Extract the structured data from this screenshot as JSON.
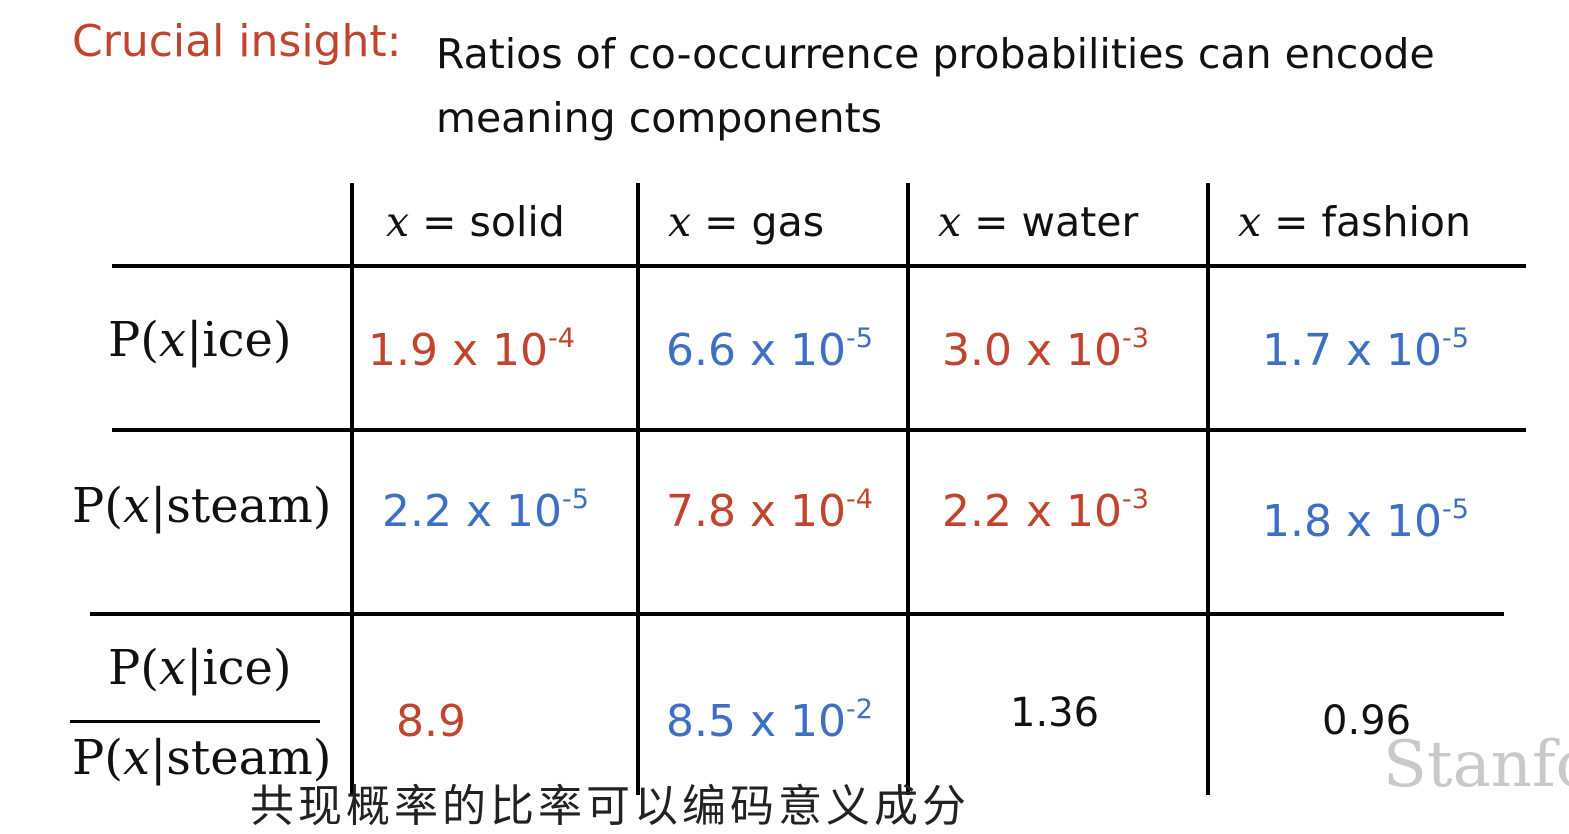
{
  "insight": {
    "label": "Crucial insight:",
    "text": "Ratios of co-occurrence probabilities can encode meaning components"
  },
  "table": {
    "columns": [
      {
        "var": "x",
        "eq": "= solid"
      },
      {
        "var": "x",
        "eq": "= gas"
      },
      {
        "var": "x",
        "eq": "= water"
      },
      {
        "var": "x",
        "eq": "= fashion"
      }
    ],
    "rows": [
      {
        "label": {
          "p": "P(",
          "var": "x",
          "rest": "|ice)"
        },
        "cells": [
          {
            "mant": "1.9 x 10",
            "exp": "-4",
            "color": "#c0442f"
          },
          {
            "mant": "6.6 x 10",
            "exp": "-5",
            "color": "#3f6fc2"
          },
          {
            "mant": "3.0 x 10",
            "exp": "-3",
            "color": "#c0442f"
          },
          {
            "mant": "1.7 x 10",
            "exp": "-5",
            "color": "#3f6fc2"
          }
        ]
      },
      {
        "label": {
          "p": "P(",
          "var": "x",
          "rest": "|steam)"
        },
        "cells": [
          {
            "mant": "2.2 x 10",
            "exp": "-5",
            "color": "#3f6fc2"
          },
          {
            "mant": "7.8 x 10",
            "exp": "-4",
            "color": "#c0442f"
          },
          {
            "mant": "2.2 x 10",
            "exp": "-3",
            "color": "#c0442f"
          },
          {
            "mant": "1.8 x 10",
            "exp": "-5",
            "color": "#3f6fc2"
          }
        ]
      },
      {
        "label_num": {
          "p": "P(",
          "var": "x",
          "rest": "|ice)"
        },
        "label_den": {
          "p": "P(",
          "var": "x",
          "rest": "|steam)"
        },
        "cells": [
          {
            "mant": "8.9",
            "exp": "",
            "color": "#c0442f"
          },
          {
            "mant": "8.5 x 10",
            "exp": "-2",
            "color": "#3f6fc2"
          },
          {
            "mant": "1.36",
            "exp": "",
            "color": "#111111"
          },
          {
            "mant": "0.96",
            "exp": "",
            "color": "#111111"
          }
        ]
      }
    ]
  },
  "watermark": "Stanfo",
  "subtitle": "共现概率的比率可以编码意义成分"
}
